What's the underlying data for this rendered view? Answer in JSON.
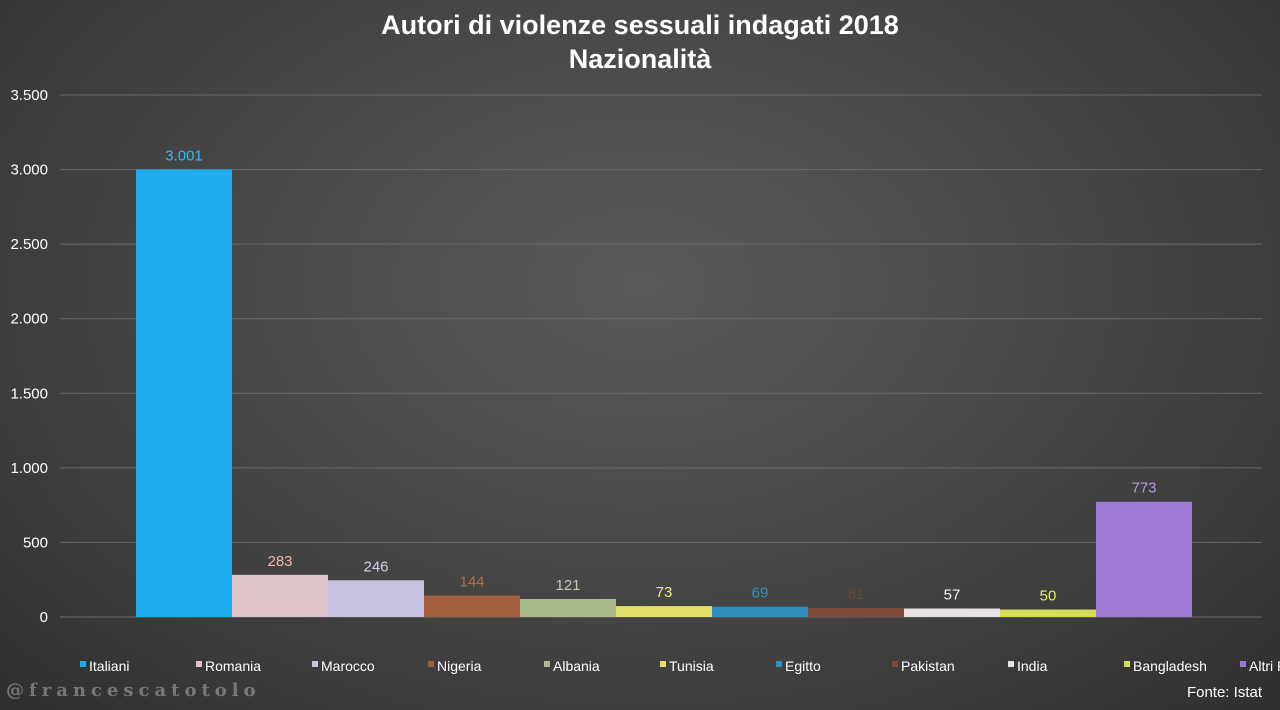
{
  "chart_data": {
    "type": "bar",
    "title": "Autori di violenze sessuali indagati 2018",
    "subtitle": "Nazionalità",
    "categories": [
      "Italiani",
      "Romania",
      "Marocco",
      "Nigeria",
      "Albania",
      "Tunisia",
      "Egitto",
      "Pakistan",
      "India",
      "Bangladesh",
      "Altri Paesi"
    ],
    "values": [
      3001,
      283,
      246,
      144,
      121,
      73,
      69,
      61,
      57,
      50,
      773
    ],
    "value_labels": [
      "3.001",
      "283",
      "246",
      "144",
      "121",
      "73",
      "69",
      "61",
      "57",
      "50",
      "773"
    ],
    "colors": [
      "#1eaef0",
      "#dcc4c8",
      "#c6c2e2",
      "#a35f3f",
      "#a9b98a",
      "#e3e06a",
      "#2f8fbf",
      "#7d4b37",
      "#e7e2e4",
      "#d6dd55",
      "#9e79d6"
    ],
    "label_colors": [
      "#3db6f2",
      "#f0b8b0",
      "#d0cdea",
      "#b46d4e",
      "#c4c8b4",
      "#f2ee7a",
      "#3c8fb8",
      "#6a4736",
      "#f2f2f2",
      "#e6ec6a",
      "#b79be8"
    ],
    "ylim": [
      0,
      3500
    ],
    "yticks": [
      0,
      500,
      1000,
      1500,
      2000,
      2500,
      3000,
      3500
    ],
    "ytick_labels": [
      "0",
      "500",
      "1.000",
      "1.500",
      "2.000",
      "2.500",
      "3.000",
      "3.500"
    ],
    "grid": true,
    "legend_position": "bottom",
    "xlabel": "",
    "ylabel": ""
  },
  "source": "Fonte: Istat",
  "watermark": "@francescatotolo"
}
